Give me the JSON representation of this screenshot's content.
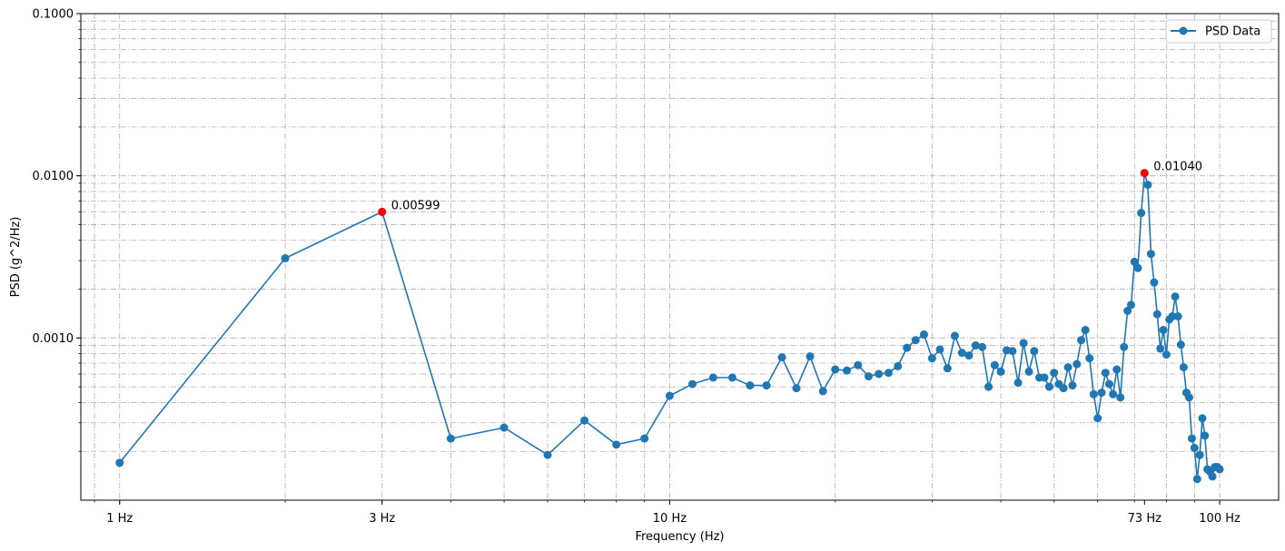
{
  "chart_data": {
    "type": "line",
    "xlabel": "Frequency (Hz)",
    "ylabel": "PSD (g^2/Hz)",
    "xscale": "log",
    "yscale": "log",
    "xlim": [
      0.85,
      128
    ],
    "ylim": [
      0.0001,
      0.1
    ],
    "grid": true,
    "legend_position": "top-right",
    "xticks": [
      {
        "value": 1,
        "label": "1 Hz"
      },
      {
        "value": 3,
        "label": "3 Hz"
      },
      {
        "value": 10,
        "label": "10 Hz"
      },
      {
        "value": 73,
        "label": "73 Hz"
      },
      {
        "value": 100,
        "label": "100 Hz"
      }
    ],
    "yticks": [
      {
        "value": 0.001,
        "label": "0.0010"
      },
      {
        "value": 0.01,
        "label": "0.0100"
      },
      {
        "value": 0.1,
        "label": "0.1000"
      }
    ],
    "series": [
      {
        "name": "PSD Data",
        "color": "#1f77b4",
        "x": [
          1,
          2,
          3,
          4,
          5,
          6,
          7,
          8,
          9,
          10,
          11,
          12,
          13,
          14,
          15,
          16,
          17,
          18,
          19,
          20,
          21,
          22,
          23,
          24,
          25,
          26,
          27,
          28,
          29,
          30,
          31,
          32,
          33,
          34,
          35,
          36,
          37,
          38,
          39,
          40,
          41,
          42,
          43,
          44,
          45,
          46,
          47,
          48,
          49,
          50,
          51,
          52,
          53,
          54,
          55,
          56,
          57,
          58,
          59,
          60,
          61,
          62,
          63,
          64,
          65,
          66,
          67,
          68,
          69,
          70,
          71,
          72,
          73,
          74,
          75,
          76,
          77,
          78,
          79,
          80,
          81,
          82,
          83,
          84,
          85,
          86,
          87,
          88,
          89,
          90,
          91,
          92,
          93,
          94,
          95,
          96,
          97,
          98,
          99,
          100
        ],
        "y": [
          0.00017,
          0.0031,
          0.00599,
          0.00024,
          0.00028,
          0.00019,
          0.00031,
          0.00022,
          0.00024,
          0.00044,
          0.00052,
          0.00057,
          0.00057,
          0.00051,
          0.00051,
          0.00076,
          0.00049,
          0.00077,
          0.00047,
          0.00064,
          0.00063,
          0.00068,
          0.00058,
          0.0006,
          0.00061,
          0.00067,
          0.00087,
          0.00097,
          0.00105,
          0.00075,
          0.00085,
          0.00065,
          0.00103,
          0.00081,
          0.00078,
          0.0009,
          0.00088,
          0.0005,
          0.00068,
          0.00062,
          0.00084,
          0.00083,
          0.00053,
          0.00093,
          0.00062,
          0.00083,
          0.00057,
          0.00057,
          0.0005,
          0.00061,
          0.00052,
          0.00049,
          0.00066,
          0.00051,
          0.00069,
          0.00097,
          0.00112,
          0.00075,
          0.00045,
          0.00032,
          0.00046,
          0.00061,
          0.00052,
          0.00045,
          0.00064,
          0.00043,
          0.00088,
          0.00147,
          0.0016,
          0.00295,
          0.0027,
          0.0059,
          0.0104,
          0.0088,
          0.0033,
          0.0022,
          0.0014,
          0.00086,
          0.00112,
          0.00079,
          0.0013,
          0.00136,
          0.0018,
          0.00136,
          0.00091,
          0.00066,
          0.00046,
          0.00043,
          0.00024,
          0.00021,
          0.000135,
          0.00019,
          0.00032,
          0.00025,
          0.000155,
          0.00015,
          0.00014,
          0.00016,
          0.00016,
          0.000155
        ]
      }
    ],
    "highlights": [
      {
        "x": 3,
        "y": 0.00599,
        "label": "0.00599",
        "color": "#ff0000"
      },
      {
        "x": 73,
        "y": 0.0104,
        "label": "0.01040",
        "color": "#ff0000"
      }
    ]
  }
}
